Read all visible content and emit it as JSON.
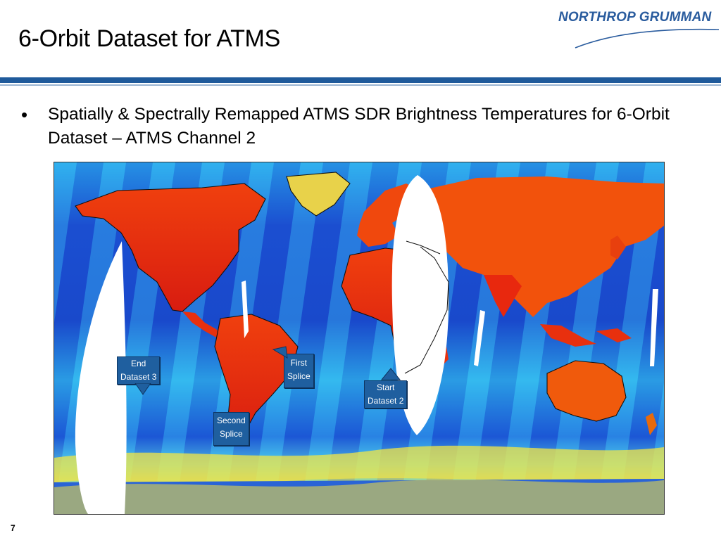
{
  "slide": {
    "title": "6-Orbit Dataset for ATMS",
    "bullets": [
      {
        "text": "Spatially & Spectrally Remapped ATMS SDR Brightness Temperatures for 6-Orbit Dataset – ATMS Channel 2"
      }
    ],
    "page_number": "7"
  },
  "logo": {
    "text": "NORTHROP GRUMMAN",
    "color": "#2a5c9e"
  },
  "map": {
    "colors": {
      "ocean_dark": "#1a46c8",
      "ocean_mid": "#23b0ee",
      "land_hot": "#e8240e",
      "land_warm": "#f35a0c",
      "ice": "#f2e84a"
    },
    "callouts": [
      {
        "id": "end-dataset-3",
        "line1": "End",
        "line2": "Dataset 3"
      },
      {
        "id": "first-splice",
        "line1": "First",
        "line2": "Splice"
      },
      {
        "id": "start-dataset-2",
        "line1": "Start",
        "line2": "Dataset 2"
      },
      {
        "id": "second-splice",
        "line1": "Second",
        "line2": "Splice"
      }
    ]
  }
}
